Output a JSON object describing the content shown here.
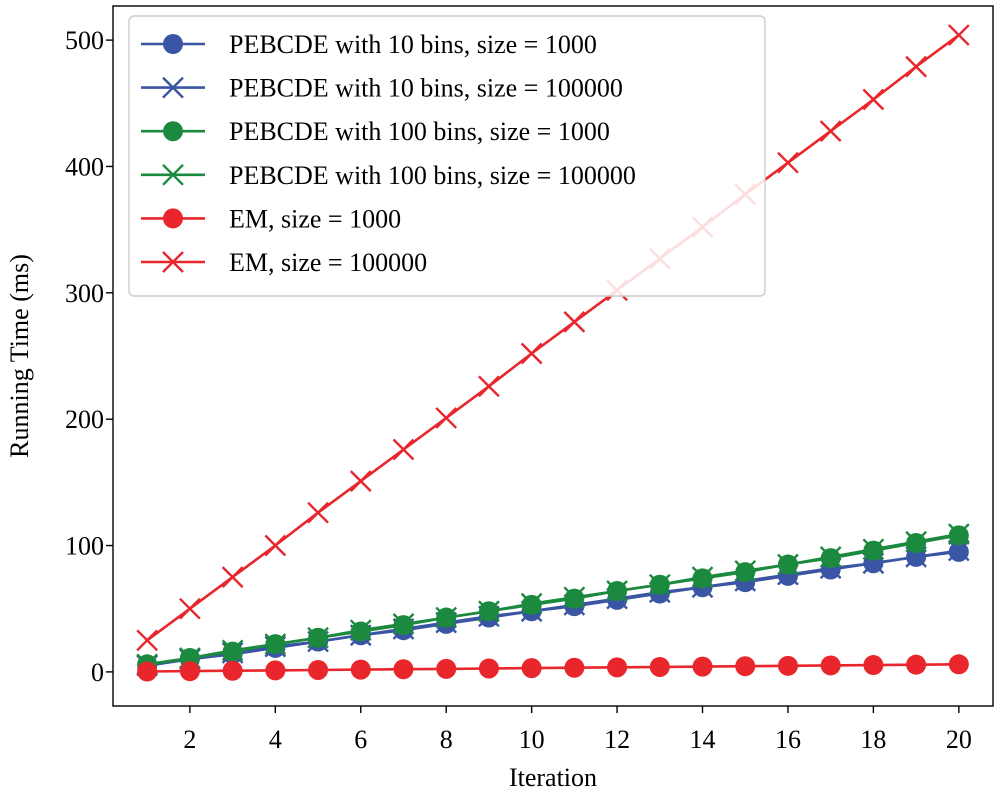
{
  "chart_data": {
    "type": "line",
    "title": "",
    "xlabel": "Iteration",
    "ylabel": "Running Time (ms)",
    "xlim": [
      0.2,
      20.8
    ],
    "ylim": [
      -27,
      527
    ],
    "xticks": [
      2,
      4,
      6,
      8,
      10,
      12,
      14,
      16,
      18,
      20
    ],
    "yticks": [
      0,
      100,
      200,
      300,
      400,
      500
    ],
    "grid": false,
    "legend_position": "top-left",
    "x": [
      1,
      2,
      3,
      4,
      5,
      6,
      7,
      8,
      9,
      10,
      11,
      12,
      13,
      14,
      15,
      16,
      17,
      18,
      19,
      20
    ],
    "series": [
      {
        "name": "PEBCDE with 10 bins, size = 1000",
        "color": "#3a55a4",
        "marker": "circle",
        "values": [
          5,
          10,
          14,
          19,
          24,
          29,
          33,
          38,
          43,
          48,
          52,
          57,
          62,
          67,
          71,
          76,
          81,
          86,
          91,
          95
        ]
      },
      {
        "name": "PEBCDE with 10 bins, size = 100000",
        "color": "#3a55a4",
        "marker": "x",
        "values": [
          5,
          10,
          15,
          20,
          24,
          29,
          34,
          39,
          44,
          48,
          53,
          58,
          63,
          67,
          72,
          77,
          82,
          86,
          91,
          96
        ]
      },
      {
        "name": "PEBCDE with 100 bins, size = 1000",
        "color": "#1c8a3e",
        "marker": "circle",
        "values": [
          6,
          11,
          16,
          22,
          27,
          32,
          37,
          43,
          48,
          53,
          58,
          64,
          69,
          74,
          79,
          85,
          90,
          96,
          102,
          108
        ]
      },
      {
        "name": "PEBCDE with 100 bins, size = 100000",
        "color": "#1c8a3e",
        "marker": "x",
        "values": [
          6,
          11,
          17,
          22,
          27,
          33,
          38,
          43,
          48,
          54,
          59,
          64,
          69,
          75,
          80,
          85,
          91,
          97,
          103,
          109
        ]
      },
      {
        "name": "EM, size = 1000",
        "color": "#e8262b",
        "marker": "circle",
        "values": [
          0.3,
          0.6,
          0.9,
          1.2,
          1.5,
          1.8,
          2.1,
          2.4,
          2.7,
          3.0,
          3.3,
          3.6,
          3.9,
          4.2,
          4.5,
          4.8,
          5.1,
          5.4,
          5.7,
          6.0
        ]
      },
      {
        "name": "EM, size = 100000",
        "color": "#e8262b",
        "marker": "x",
        "values": [
          25,
          50,
          75,
          100,
          126,
          151,
          176,
          201,
          226,
          252,
          277,
          302,
          327,
          352,
          378,
          403,
          428,
          453,
          479,
          504
        ]
      }
    ]
  }
}
